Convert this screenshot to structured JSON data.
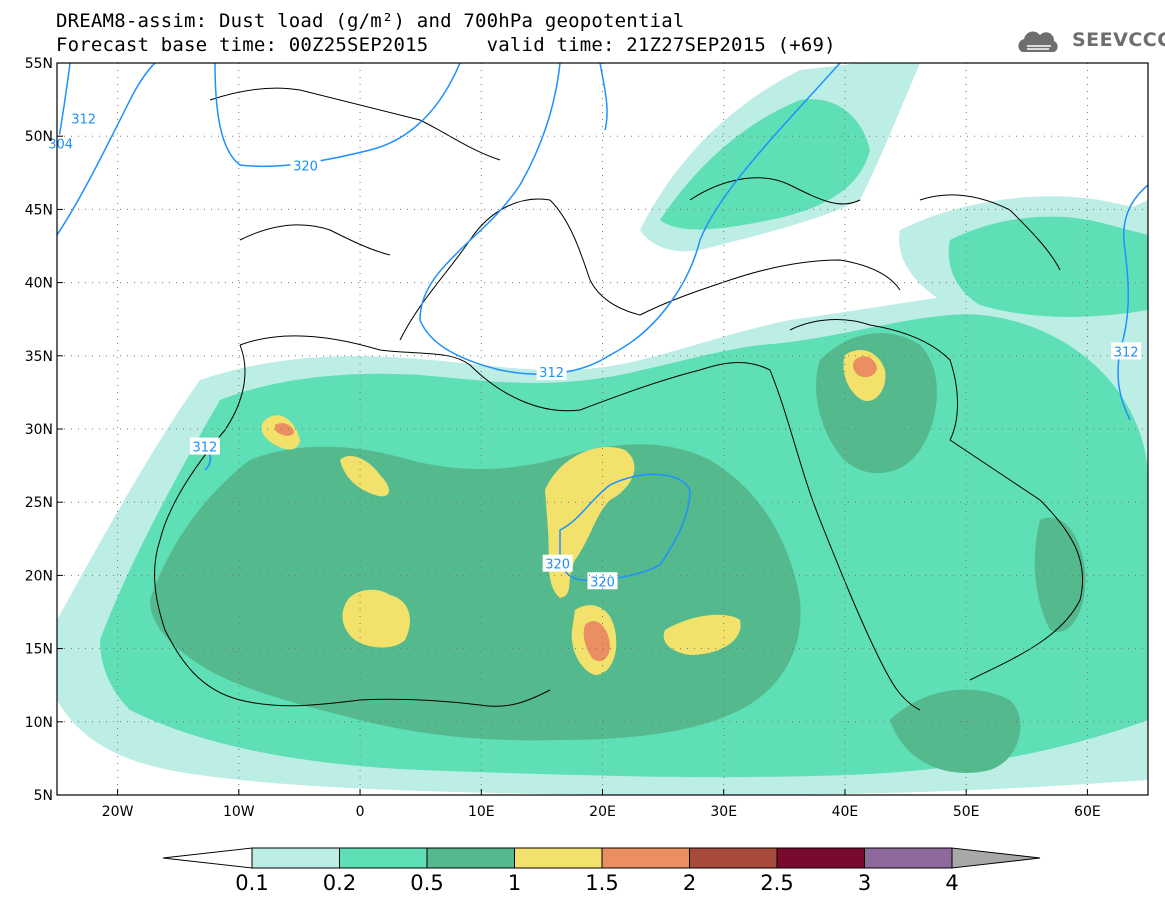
{
  "title_line1": "DREAM8-assim: Dust load (g/m²) and 700hPa geopotential",
  "title_line2": "Forecast base time: 00Z25SEP2015     valid time: 21Z27SEP2015 (+69)",
  "logo_text": "SEEVCCC",
  "logo_icon": "cloud-icon",
  "axes": {
    "lon_range": [
      -25,
      65
    ],
    "lat_range": [
      5,
      55
    ],
    "lon_ticks": [
      {
        "value": -20,
        "label": "20W"
      },
      {
        "value": -10,
        "label": "10W"
      },
      {
        "value": 0,
        "label": "0"
      },
      {
        "value": 10,
        "label": "10E"
      },
      {
        "value": 20,
        "label": "20E"
      },
      {
        "value": 30,
        "label": "30E"
      },
      {
        "value": 40,
        "label": "40E"
      },
      {
        "value": 50,
        "label": "50E"
      },
      {
        "value": 60,
        "label": "60E"
      }
    ],
    "lat_ticks": [
      {
        "value": 55,
        "label": "55N"
      },
      {
        "value": 50,
        "label": "50N"
      },
      {
        "value": 45,
        "label": "45N"
      },
      {
        "value": 40,
        "label": "40N"
      },
      {
        "value": 35,
        "label": "35N"
      },
      {
        "value": 30,
        "label": "30N"
      },
      {
        "value": 25,
        "label": "25N"
      },
      {
        "value": 20,
        "label": "20N"
      },
      {
        "value": 15,
        "label": "15N"
      },
      {
        "value": 10,
        "label": "10N"
      },
      {
        "value": 5,
        "label": "5N"
      }
    ],
    "gridlines": "dotted"
  },
  "contour_labels": [
    {
      "text": "312",
      "lon": -22.8,
      "lat": 51.2
    },
    {
      "text": "304",
      "lon": -24.7,
      "lat": 49.5
    },
    {
      "text": "320",
      "lon": -4.5,
      "lat": 48.0
    },
    {
      "text": "312",
      "lon": 15.8,
      "lat": 33.9
    },
    {
      "text": "312",
      "lon": -12.8,
      "lat": 28.8
    },
    {
      "text": "320",
      "lon": 16.3,
      "lat": 20.8
    },
    {
      "text": "320",
      "lon": 20.0,
      "lat": 19.6
    },
    {
      "text": "312",
      "lon": 63.2,
      "lat": 35.3
    }
  ],
  "colorbar": {
    "colors": [
      "#bdeee6",
      "#5fdfb5",
      "#55b98e",
      "#f2e26c",
      "#eb8e62",
      "#a7493b",
      "#7a0a2d",
      "#8e6a9c"
    ],
    "over_color": "#a8a8a8",
    "under_color": "#ffffff",
    "labels": [
      "0.1",
      "0.2",
      "0.5",
      "1",
      "1.5",
      "2",
      "2.5",
      "3",
      "4"
    ]
  }
}
